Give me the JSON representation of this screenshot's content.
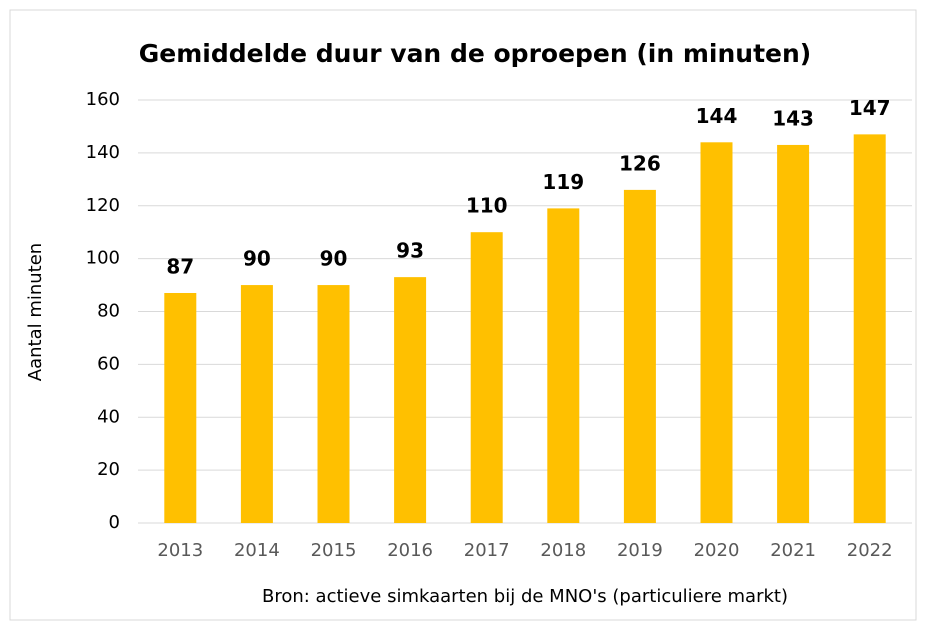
{
  "chart_data": {
    "type": "bar",
    "title": "Gemiddelde duur van de oproepen (in minuten)",
    "x_label": "Bron: actieve simkaarten bij de MNO's (particuliere markt)",
    "y_label": "Aantal minuten",
    "categories": [
      "2013",
      "2014",
      "2015",
      "2016",
      "2017",
      "2018",
      "2019",
      "2020",
      "2021",
      "2022"
    ],
    "values": [
      87,
      90,
      90,
      93,
      110,
      119,
      126,
      144,
      143,
      147
    ],
    "color": "#ffc000",
    "ylim": [
      0,
      160
    ],
    "yticks": [
      0,
      20,
      40,
      60,
      80,
      100,
      120,
      140,
      160
    ],
    "grid": true
  }
}
